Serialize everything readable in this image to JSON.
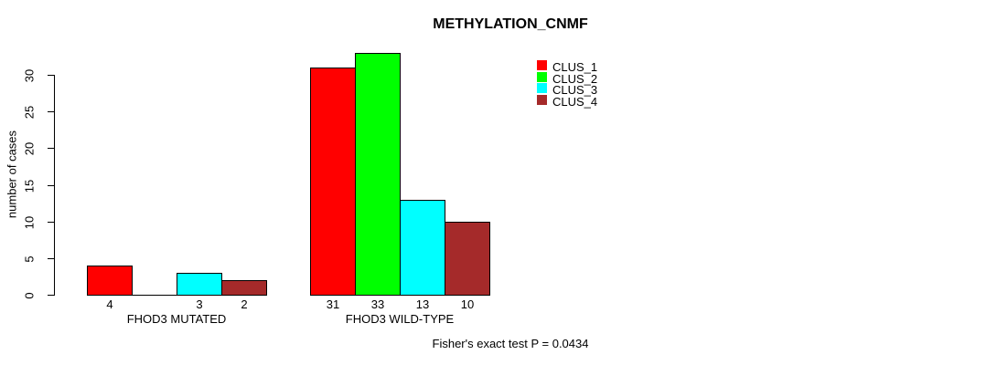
{
  "chart_data": {
    "type": "bar",
    "title": "METHYLATION_CNMF",
    "ylabel": "number of cases",
    "footer": "Fisher's exact test P = 0.0434",
    "ylim": [
      0,
      33
    ],
    "yticks": [
      0,
      5,
      10,
      15,
      20,
      25,
      30
    ],
    "grid": false,
    "categories": [
      "FHOD3 MUTATED",
      "FHOD3 WILD-TYPE"
    ],
    "series": [
      {
        "name": "CLUS_1",
        "color": "#ff0000",
        "values": [
          4,
          31
        ]
      },
      {
        "name": "CLUS_2",
        "color": "#00ff00",
        "values": [
          0,
          33
        ]
      },
      {
        "name": "CLUS_3",
        "color": "#00ffff",
        "values": [
          3,
          13
        ]
      },
      {
        "name": "CLUS_4",
        "color": "#a52a2a",
        "values": [
          2,
          10
        ]
      }
    ],
    "bar_value_labels_shown": true,
    "zero_bars_unlabeled": true,
    "legend": {
      "position": "top-right-of-plot",
      "items": [
        {
          "label": "CLUS_1",
          "color": "#ff0000"
        },
        {
          "label": "CLUS_2",
          "color": "#00ff00"
        },
        {
          "label": "CLUS_3",
          "color": "#00ffff"
        },
        {
          "label": "CLUS_4",
          "color": "#a52a2a"
        }
      ]
    }
  }
}
